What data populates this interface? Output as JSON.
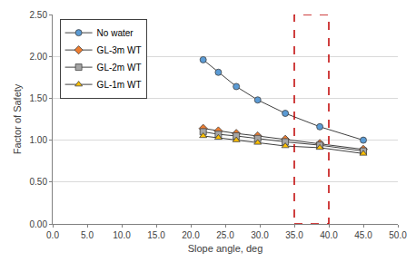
{
  "chart_data": {
    "type": "line",
    "x_label": "Slope angle, deg",
    "y_label": "Factor of Safety",
    "x": [
      21.8,
      24.0,
      26.6,
      29.7,
      33.7,
      38.7,
      45.0
    ],
    "series": [
      {
        "name": "No water",
        "color": "#5b9bd5",
        "marker": "circle",
        "values": [
          1.96,
          1.81,
          1.64,
          1.48,
          1.32,
          1.16,
          1.0
        ]
      },
      {
        "name": "GL-3m WT",
        "color": "#ed7d31",
        "marker": "diamond",
        "values": [
          1.14,
          1.11,
          1.08,
          1.05,
          1.01,
          0.96,
          0.89
        ]
      },
      {
        "name": "GL-2m WT",
        "color": "#a5a5a5",
        "marker": "square",
        "values": [
          1.1,
          1.07,
          1.05,
          1.02,
          0.98,
          0.94,
          0.87
        ]
      },
      {
        "name": "GL-1m WT",
        "color": "#ffc000",
        "marker": "triangle-up",
        "values": [
          1.05,
          1.03,
          1.0,
          0.97,
          0.93,
          0.91,
          0.84
        ]
      }
    ],
    "xlim": [
      0,
      50
    ],
    "xticks": [
      {
        "value": 0,
        "label": "0.0"
      },
      {
        "value": 5,
        "label": "5.0"
      },
      {
        "value": 10,
        "label": "10.0"
      },
      {
        "value": 15,
        "label": "15.0"
      },
      {
        "value": 20,
        "label": "20.0"
      },
      {
        "value": 25,
        "label": "25.0"
      },
      {
        "value": 30,
        "label": "30.0"
      },
      {
        "value": 35,
        "label": "35.0"
      },
      {
        "value": 40,
        "label": "40.0"
      },
      {
        "value": 45,
        "label": "45.0"
      },
      {
        "value": 50,
        "label": "50.0"
      }
    ],
    "ylim": [
      0,
      2.5
    ],
    "yticks": [
      {
        "value": 0,
        "label": "0.00"
      },
      {
        "value": 0.5,
        "label": "0.50"
      },
      {
        "value": 1,
        "label": "1.00"
      },
      {
        "value": 1.5,
        "label": "1.50"
      },
      {
        "value": 2,
        "label": "2.00"
      },
      {
        "value": 2.5,
        "label": "2.50"
      }
    ],
    "grid": true,
    "legend": "top-left",
    "highlight": {
      "xlim": [
        35,
        40
      ],
      "ylim": [
        0,
        2.5
      ],
      "color": "#c00000",
      "line_style": "dash"
    }
  }
}
